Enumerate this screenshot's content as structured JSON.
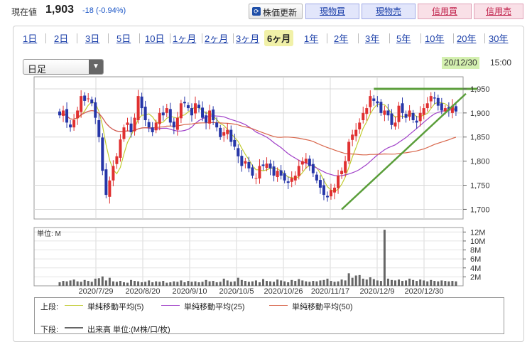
{
  "header": {
    "current_label": "現在値",
    "current_price": "1,903",
    "change": "-18 (-0.94%)",
    "refresh_label": "株価更新",
    "buttons": [
      {
        "label": "現物買",
        "kind": "buy"
      },
      {
        "label": "現物売",
        "kind": "sell"
      },
      {
        "label": "信用買",
        "kind": "sell"
      },
      {
        "label": "信用売",
        "kind": "sell"
      }
    ]
  },
  "tabs": [
    "1日",
    "2日",
    "3日",
    "5日",
    "10日",
    "1ヶ月",
    "2ヶ月",
    "3ヶ月",
    "6ヶ月",
    "1年",
    "2年",
    "3年",
    "5年",
    "10年",
    "20年",
    "30年"
  ],
  "selected_tab": "6ヶ月",
  "interval_select": {
    "value": "日足"
  },
  "last_date": "20/12/30",
  "last_time": "15:00",
  "volume_unit_label": "単位: M",
  "legend": {
    "upper_label": "上段:",
    "ma5": "単純移動平均(5)",
    "ma25": "単純移動平均(25)",
    "ma50": "単純移動平均(50)",
    "lower_label": "下段:",
    "volume": "出来高 単位:(M株/口/枚)"
  },
  "colors": {
    "up": "#e03030",
    "down": "#2636a8",
    "ma5": "#c2cc33",
    "ma25": "#a040c8",
    "ma50": "#d8654a",
    "trend": "#5a9e3a",
    "volume": "#666666",
    "date_highlight": "#d4f0b0"
  },
  "chart_data": {
    "type": "candlestick",
    "price_ticks": [
      "1,950",
      "1,900",
      "1,850",
      "1,800",
      "1,750",
      "1,700"
    ],
    "volume_ticks": [
      "12M",
      "10M",
      "8M",
      "6M",
      "4M",
      "2M"
    ],
    "x_labels": [
      "2020/7/29",
      "2020/8/20",
      "2020/9/10",
      "2020/10/5",
      "2020/10/26",
      "2020/11/17",
      "2020/12/9",
      "2020/12/30"
    ],
    "closes": [
      1895,
      1905,
      1880,
      1870,
      1885,
      1905,
      1935,
      1925,
      1930,
      1920,
      1890,
      1850,
      1780,
      1730,
      1760,
      1790,
      1810,
      1845,
      1870,
      1880,
      1860,
      1890,
      1935,
      1910,
      1885,
      1870,
      1860,
      1880,
      1900,
      1895,
      1910,
      1880,
      1870,
      1890,
      1920,
      1920,
      1910,
      1895,
      1920,
      1910,
      1890,
      1880,
      1905,
      1885,
      1870,
      1850,
      1860,
      1865,
      1840,
      1830,
      1810,
      1790,
      1800,
      1785,
      1770,
      1765,
      1790,
      1790,
      1795,
      1785,
      1770,
      1780,
      1770,
      1760,
      1755,
      1765,
      1770,
      1790,
      1800,
      1805,
      1790,
      1775,
      1760,
      1745,
      1730,
      1725,
      1740,
      1745,
      1770,
      1780,
      1800,
      1840,
      1855,
      1865,
      1880,
      1900,
      1910,
      1935,
      1925,
      1920,
      1900,
      1905,
      1895,
      1875,
      1880,
      1915,
      1900,
      1890,
      1905,
      1885,
      1880,
      1900,
      1910,
      1920,
      1935,
      1930,
      1915,
      1905,
      1910,
      1905,
      1915,
      1903
    ],
    "volume_m": [
      0.8,
      1.1,
      1.0,
      1.2,
      1.4,
      1.0,
      0.9,
      1.3,
      1.1,
      0.9,
      1.6,
      1.7,
      2.1,
      1.2,
      1.8,
      1.0,
      0.9,
      1.1,
      0.8,
      0.7,
      1.3,
      1.1,
      1.0,
      0.8,
      0.9,
      1.2,
      0.8,
      1.0,
      0.9,
      1.1,
      0.7,
      0.8,
      1.0,
      0.9,
      1.2,
      0.8,
      1.1,
      0.9,
      1.0,
      0.8,
      0.9,
      1.3,
      1.0,
      1.1,
      0.8,
      0.9,
      1.6,
      1.2,
      0.9,
      1.0,
      1.8,
      1.3,
      1.1,
      0.9,
      1.0,
      1.2,
      0.8,
      1.5,
      1.1,
      1.0,
      0.9,
      1.4,
      1.2,
      1.0,
      0.8,
      1.3,
      1.1,
      1.5,
      1.2,
      1.0,
      0.9,
      1.1,
      1.0,
      1.2,
      1.3,
      1.6,
      1.1,
      0.9,
      1.0,
      1.4,
      1.2,
      2.8,
      1.8,
      2.3,
      2.4,
      1.6,
      1.4,
      1.9,
      1.5,
      1.2,
      1.1,
      12.5,
      1.6,
      1.3,
      1.2,
      1.4,
      1.1,
      1.2,
      1.6,
      1.3,
      1.1,
      1.4,
      1.2,
      1.0,
      1.3,
      1.1,
      1.0,
      1.2,
      1.1,
      1.0,
      1.1,
      1.0
    ],
    "price_range": [
      1680,
      1975
    ],
    "volume_range": [
      0,
      13
    ]
  }
}
